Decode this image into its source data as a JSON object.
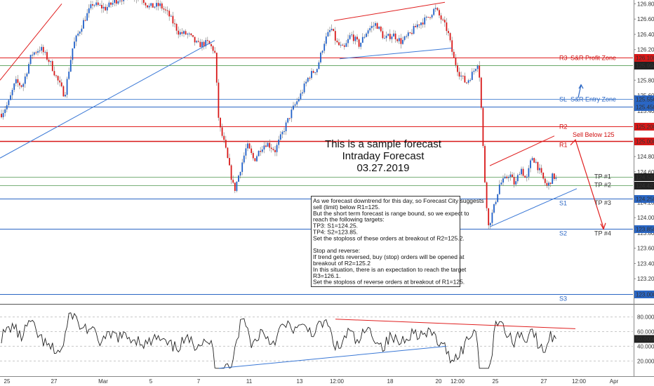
{
  "chart_data": {
    "type": "candlestick",
    "price_axis": {
      "ticks": [
        "126.800",
        "126.600",
        "126.400",
        "126.200",
        "126.000",
        "125.800",
        "125.600",
        "125.400",
        "125.200",
        "125.000",
        "124.800",
        "124.600",
        "124.400",
        "124.200",
        "124.000",
        "123.800",
        "123.600",
        "123.400",
        "123.200",
        "123.000"
      ],
      "range": [
        122.88,
        126.85
      ]
    },
    "time_axis": [
      "25",
      "27",
      "Mar",
      "5",
      "7",
      "11",
      "13",
      "12:00",
      "18",
      "20",
      "12:00",
      "25",
      "27",
      "12:00",
      "Apr"
    ],
    "levels": [
      {
        "tag": "R3",
        "label": "S&R Profit Zone",
        "price": 126.1,
        "price_label": "126.100",
        "color": "#e02020",
        "tag_color": "#d01010"
      },
      {
        "tag": "",
        "label": "",
        "price": 125.994,
        "price_label": "125.994",
        "color": "#6aaa6a",
        "tag_color": "#333"
      },
      {
        "tag": "SL",
        "label": "S&R Entry Zone",
        "price": 125.556,
        "price_label": "125.556",
        "color": "#5b8fd6",
        "tag_color": "#2a66c4"
      },
      {
        "tag": "",
        "label": "",
        "price": 125.45,
        "price_label": "125.450",
        "color": "#2a66c4",
        "tag_color": "#333"
      },
      {
        "tag": "R2",
        "label": "",
        "price": 125.2,
        "price_label": "125.200",
        "color": "#e02020",
        "tag_color": "#d01010"
      },
      {
        "tag": "R1",
        "label": "",
        "price": 125.0,
        "price_label": "125.000",
        "color": "#d81818",
        "tag_color": "#d01010"
      },
      {
        "tag": "",
        "label": "",
        "price": 124.537,
        "price_label": "124.537",
        "color": "#7ab07a",
        "tag_color": "#333"
      },
      {
        "tag": "",
        "label": "",
        "price": 124.427,
        "price_label": "124.427",
        "color": "#7ab07a",
        "tag_color": "#333"
      },
      {
        "tag": "S1",
        "label": "",
        "price": 124.25,
        "price_label": "124.250",
        "color": "#2a66c4",
        "tag_color": "#2a66c4"
      },
      {
        "tag": "S2",
        "label": "",
        "price": 123.85,
        "price_label": "123.850",
        "color": "#2a66c4",
        "tag_color": "#2a66c4"
      },
      {
        "tag": "S3",
        "label": "",
        "price": 123.0,
        "price_label": "123.000",
        "color": "#2a66c4",
        "tag_color": "#2a66c4"
      }
    ],
    "targets": [
      {
        "label": "TP #1",
        "price": 124.537
      },
      {
        "label": "TP #2",
        "price": 124.427
      },
      {
        "label": "TP #3",
        "price": 124.25
      },
      {
        "label": "TP #4",
        "price": 123.85
      }
    ],
    "sell_label": "Sell Below 125",
    "title_lines": [
      "This is a sample forecast",
      "Intraday Forecast",
      "03.27.2019"
    ],
    "note_lines": [
      "As we forecast downtrend for this day, so Forecast City suggests",
      "sell (limit) below R1=125.",
      "But the short term forecast is range bound, so we expect to",
      "reach the following targets:",
      "TP3: S1=124.25.",
      "TP4: S2=123.85.",
      "Set the stoploss of these orders at breakout of R2=125.2.",
      "",
      "Stop and reverse:",
      "If trend gets reversed, buy (stop) orders will be opened at",
      "breakout of R2=125.2",
      "In this situation, there is an expectation to reach the target",
      "R3=126.1.",
      "Set the stoploss of reverse orders at breakout of R1=125."
    ],
    "indicator": {
      "ticks": [
        "80.0000",
        "60.0000",
        "50.0000",
        "40.0000",
        "20.0000"
      ],
      "current_label": "50.0000",
      "range": [
        5,
        93
      ]
    },
    "candle_colors": {
      "up": "#1f5fc8",
      "down": "#d81818",
      "wick": "#777777"
    }
  }
}
